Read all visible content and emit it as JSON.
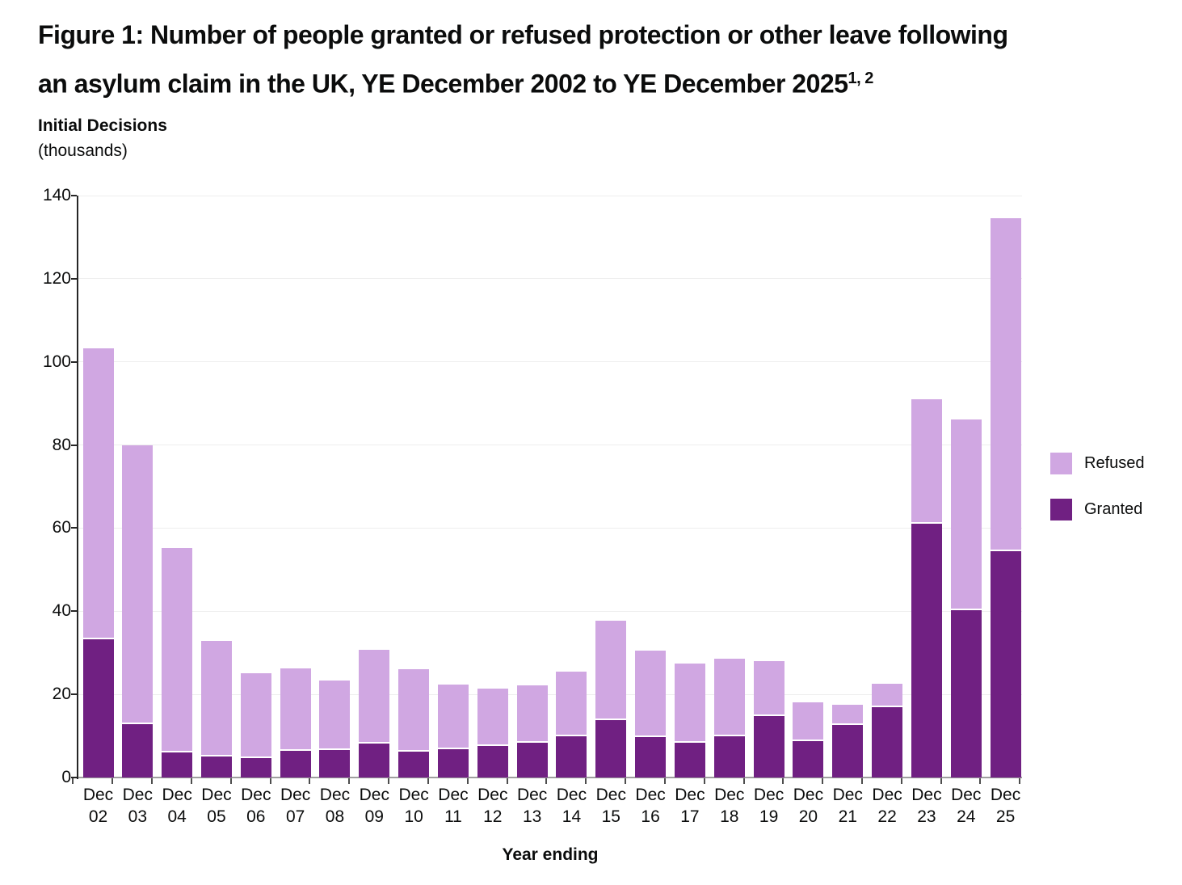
{
  "title": {
    "line1": "Figure 1: Number of people granted or refused protection or other leave following",
    "line2": "an asylum claim in the UK, YE December 2002 to YE December 2025",
    "superscript": "1, 2"
  },
  "y_axis": {
    "label_bold": "Initial Decisions",
    "label_sub": "(thousands)",
    "ticks": [
      140,
      120,
      100,
      80,
      60,
      40,
      20,
      0
    ]
  },
  "x_axis": {
    "label": "Year ending"
  },
  "legend": {
    "items": [
      {
        "label": "Refused",
        "color": "#d0a7e2"
      },
      {
        "label": "Granted",
        "color": "#702082"
      }
    ]
  },
  "colors": {
    "refused": "#d0a7e2",
    "granted": "#702082",
    "gridline": "#eeeeee",
    "axis": "#9e9e9e"
  },
  "chart_data": {
    "type": "bar",
    "stacked": true,
    "title": "Figure 1: Number of people granted or refused protection or other leave following an asylum claim in the UK, YE December 2002 to YE December 2025",
    "xlabel": "Year ending",
    "ylabel": "Initial Decisions (thousands)",
    "ylim": [
      0,
      140
    ],
    "grid": true,
    "legend_position": "right",
    "categories": [
      "Dec 02",
      "Dec 03",
      "Dec 04",
      "Dec 05",
      "Dec 06",
      "Dec 07",
      "Dec 08",
      "Dec 09",
      "Dec 10",
      "Dec 11",
      "Dec 12",
      "Dec 13",
      "Dec 14",
      "Dec 15",
      "Dec 16",
      "Dec 17",
      "Dec 18",
      "Dec 19",
      "Dec 20",
      "Dec 21",
      "Dec 22",
      "Dec 23",
      "Dec 24",
      "Dec 25"
    ],
    "series": [
      {
        "name": "Granted",
        "color": "#702082",
        "values": [
          33.3,
          12.9,
          6.0,
          5.0,
          4.6,
          6.4,
          6.7,
          8.2,
          6.3,
          6.9,
          7.6,
          8.4,
          10.0,
          13.8,
          9.8,
          8.3,
          10.0,
          14.8,
          8.7,
          12.7,
          17.0,
          61.0,
          40.3,
          54.4
        ]
      },
      {
        "name": "Refused",
        "color": "#d0a7e2",
        "values": [
          69.9,
          67.1,
          49.2,
          27.9,
          20.5,
          19.9,
          16.7,
          22.5,
          19.8,
          15.5,
          13.8,
          13.7,
          15.5,
          23.9,
          20.7,
          19.1,
          18.5,
          13.3,
          9.4,
          4.9,
          5.5,
          30.1,
          45.9,
          80.2
        ]
      }
    ]
  }
}
